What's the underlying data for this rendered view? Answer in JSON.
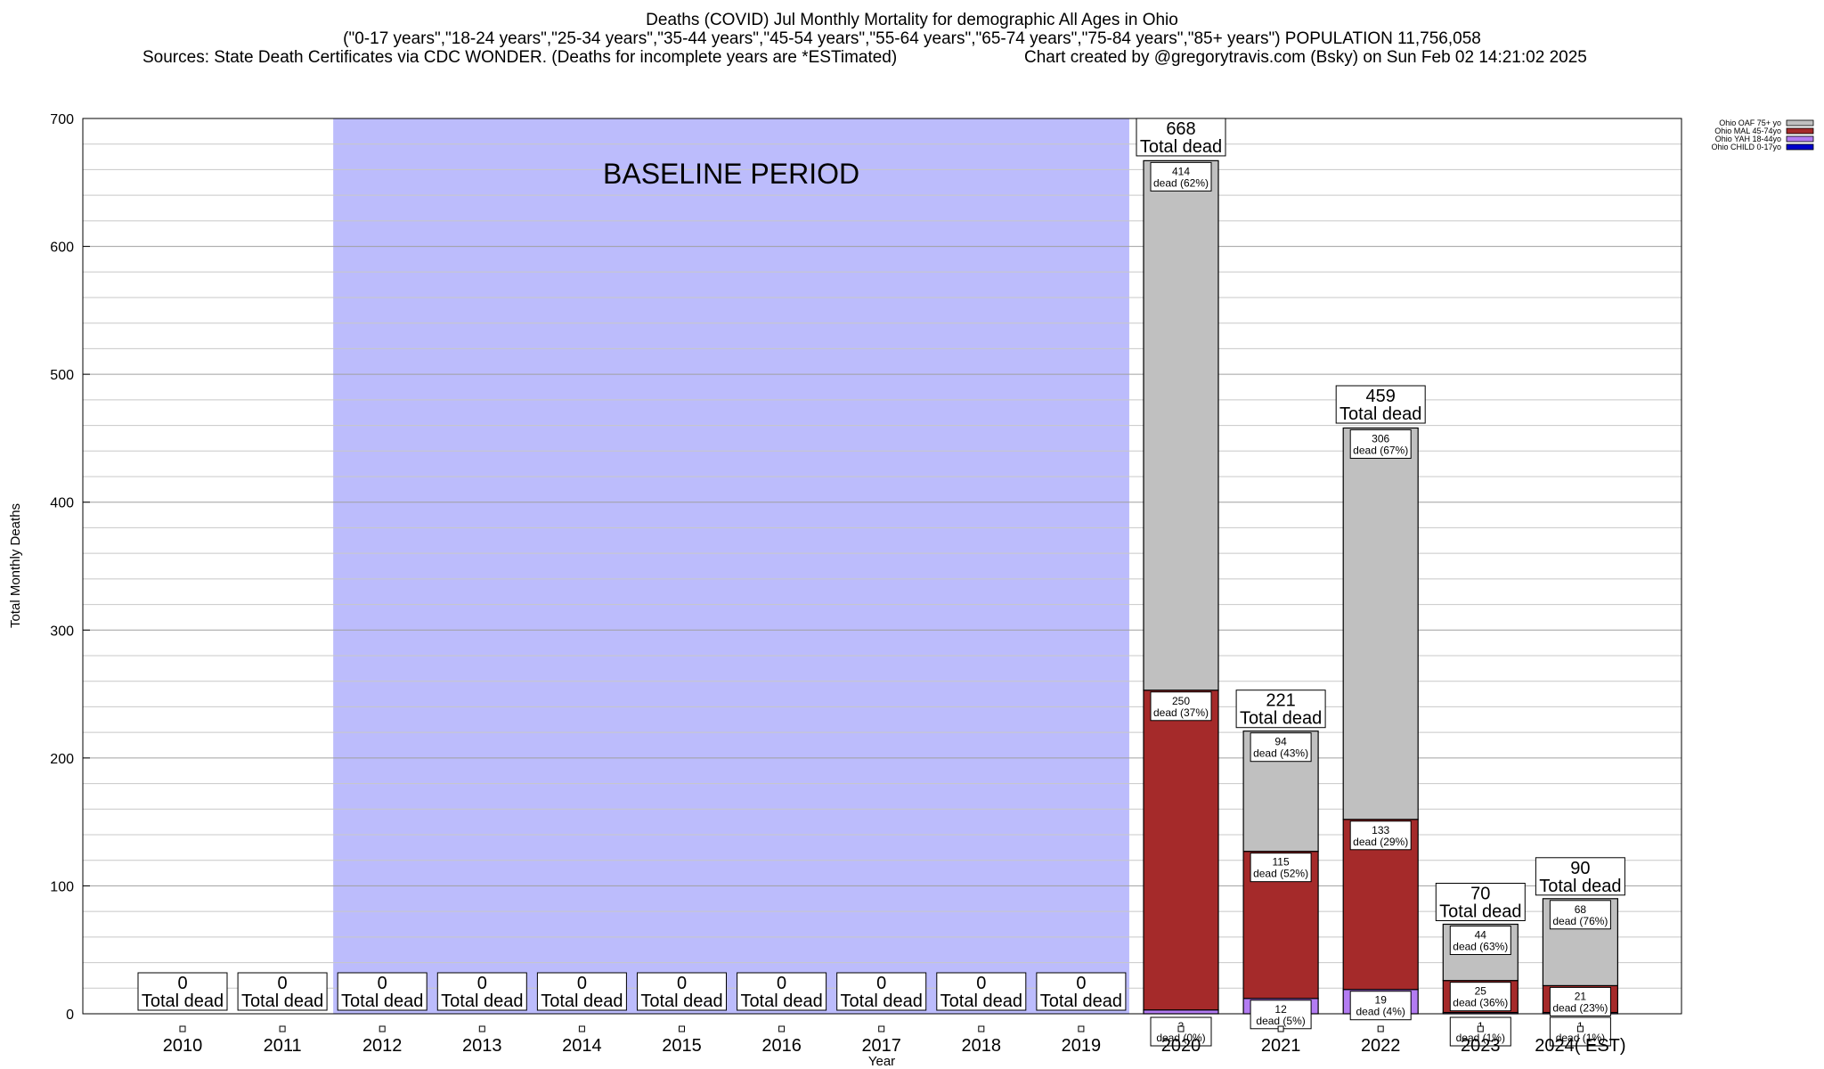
{
  "header": {
    "title": "Deaths (COVID) Jul Monthly Mortality for demographic All Ages in Ohio",
    "subtitle": "(\"0-17 years\",\"18-24 years\",\"25-34 years\",\"35-44 years\",\"45-54 years\",\"55-64 years\",\"65-74 years\",\"75-84 years\",\"85+ years\") POPULATION 11,756,058",
    "sources": "Sources: State Death Certificates via CDC WONDER. (Deaths for incomplete years are *ESTimated)",
    "credit": "Chart created by @gregorytravis.com (Bsky) on Sun Feb 02 14:21:02 2025"
  },
  "chart_data": {
    "type": "bar",
    "stacked": true,
    "xlabel": "Year",
    "ylabel": "Total Monthly Deaths",
    "ylim": [
      0,
      700
    ],
    "yticks": [
      0,
      100,
      200,
      300,
      400,
      500,
      600,
      700
    ],
    "grid": true,
    "legend_position": "top-right",
    "categories": [
      "2010",
      "2011",
      "2012",
      "2013",
      "2014",
      "2015",
      "2016",
      "2017",
      "2018",
      "2019",
      "2020",
      "2021",
      "2022",
      "2023",
      "2024( EST)"
    ],
    "baseline": {
      "label": "BASELINE PERIOD",
      "from": "2012",
      "to": "2019",
      "color": "#bcbcfc"
    },
    "total_label": "Total dead",
    "dead_label": "dead",
    "series": [
      {
        "name": "Ohio CHILD 0-17yo",
        "color": "#0000cc",
        "values": [
          0,
          0,
          0,
          0,
          0,
          0,
          0,
          0,
          0,
          0,
          0,
          0,
          0,
          0,
          0
        ],
        "pct": [
          0,
          0,
          0,
          0,
          0,
          0,
          0,
          0,
          0,
          0,
          0,
          0,
          0,
          0,
          0
        ]
      },
      {
        "name": "Ohio YAH 18-44yo",
        "color": "#b37cf2",
        "values": [
          0,
          0,
          0,
          0,
          0,
          0,
          0,
          0,
          0,
          0,
          3,
          12,
          19,
          1,
          1
        ],
        "pct": [
          0,
          0,
          0,
          0,
          0,
          0,
          0,
          0,
          0,
          0,
          0,
          5,
          4,
          1,
          1
        ]
      },
      {
        "name": "Ohio MAL 45-74yo",
        "color": "#a52a2a",
        "values": [
          0,
          0,
          0,
          0,
          0,
          0,
          0,
          0,
          0,
          0,
          250,
          115,
          133,
          25,
          21
        ],
        "pct": [
          0,
          0,
          0,
          0,
          0,
          0,
          0,
          0,
          0,
          0,
          37,
          52,
          29,
          36,
          23
        ]
      },
      {
        "name": "Ohio OAF 75+ yo",
        "color": "#c0c0c0",
        "values": [
          0,
          0,
          0,
          0,
          0,
          0,
          0,
          0,
          0,
          0,
          414,
          94,
          306,
          44,
          68
        ],
        "pct": [
          0,
          0,
          0,
          0,
          0,
          0,
          0,
          0,
          0,
          0,
          62,
          43,
          67,
          63,
          76
        ]
      }
    ],
    "totals": [
      0,
      0,
      0,
      0,
      0,
      0,
      0,
      0,
      0,
      0,
      668,
      221,
      459,
      70,
      90
    ]
  }
}
